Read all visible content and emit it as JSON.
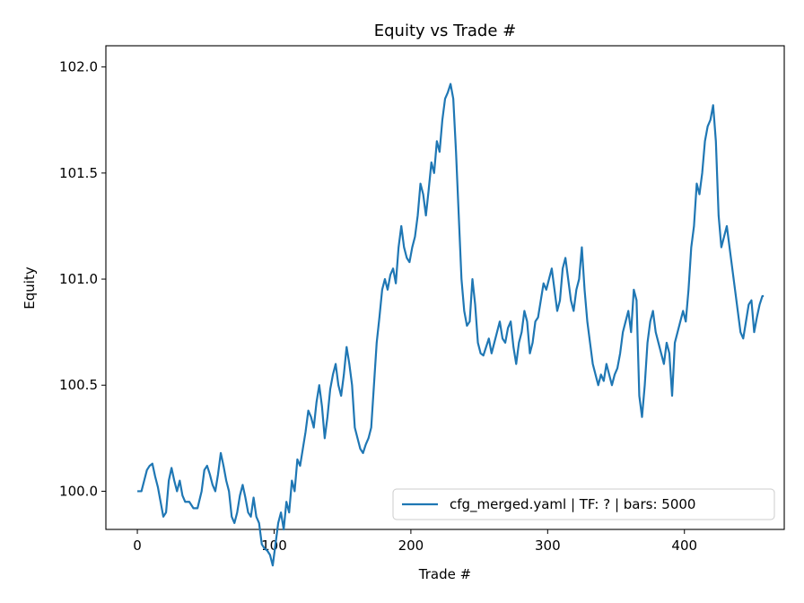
{
  "chart_data": {
    "type": "line",
    "title": "Equity vs Trade #",
    "xlabel": "Trade #",
    "ylabel": "Equity",
    "xlim": [
      -23,
      473
    ],
    "ylim": [
      99.82,
      102.1
    ],
    "xticks": [
      0,
      100,
      200,
      300,
      400
    ],
    "xtick_labels": [
      "0",
      "100",
      "200",
      "300",
      "400"
    ],
    "yticks": [
      100.0,
      100.5,
      101.0,
      101.5,
      102.0
    ],
    "ytick_labels": [
      "100.0",
      "100.5",
      "101.0",
      "101.5",
      "102.0"
    ],
    "grid": false,
    "legend_position": "lower right",
    "series": [
      {
        "name": "cfg_merged.yaml | TF: ? | bars: 5000",
        "color": "#1f77b4",
        "points": [
          [
            0,
            100.0
          ],
          [
            3,
            100.0
          ],
          [
            5,
            100.05
          ],
          [
            7,
            100.1
          ],
          [
            9,
            100.12
          ],
          [
            11,
            100.13
          ],
          [
            13,
            100.07
          ],
          [
            15,
            100.02
          ],
          [
            17,
            99.95
          ],
          [
            19,
            99.88
          ],
          [
            21,
            99.9
          ],
          [
            23,
            100.05
          ],
          [
            25,
            100.11
          ],
          [
            27,
            100.05
          ],
          [
            29,
            100.0
          ],
          [
            31,
            100.05
          ],
          [
            33,
            99.98
          ],
          [
            35,
            99.95
          ],
          [
            38,
            99.95
          ],
          [
            41,
            99.92
          ],
          [
            44,
            99.92
          ],
          [
            47,
            100.0
          ],
          [
            49,
            100.1
          ],
          [
            51,
            100.12
          ],
          [
            53,
            100.08
          ],
          [
            55,
            100.03
          ],
          [
            57,
            100.0
          ],
          [
            59,
            100.08
          ],
          [
            61,
            100.18
          ],
          [
            63,
            100.12
          ],
          [
            65,
            100.05
          ],
          [
            67,
            100.0
          ],
          [
            69,
            99.88
          ],
          [
            71,
            99.85
          ],
          [
            73,
            99.9
          ],
          [
            75,
            99.98
          ],
          [
            77,
            100.03
          ],
          [
            79,
            99.97
          ],
          [
            81,
            99.9
          ],
          [
            83,
            99.88
          ],
          [
            85,
            99.97
          ],
          [
            87,
            99.88
          ],
          [
            89,
            99.85
          ],
          [
            91,
            99.75
          ],
          [
            93,
            99.73
          ],
          [
            95,
            99.72
          ],
          [
            97,
            99.7
          ],
          [
            99,
            99.65
          ],
          [
            101,
            99.75
          ],
          [
            103,
            99.85
          ],
          [
            105,
            99.9
          ],
          [
            107,
            99.82
          ],
          [
            109,
            99.95
          ],
          [
            111,
            99.9
          ],
          [
            113,
            100.05
          ],
          [
            115,
            100.0
          ],
          [
            117,
            100.15
          ],
          [
            119,
            100.12
          ],
          [
            121,
            100.2
          ],
          [
            123,
            100.28
          ],
          [
            125,
            100.38
          ],
          [
            127,
            100.35
          ],
          [
            129,
            100.3
          ],
          [
            131,
            100.42
          ],
          [
            133,
            100.5
          ],
          [
            135,
            100.4
          ],
          [
            137,
            100.25
          ],
          [
            139,
            100.35
          ],
          [
            141,
            100.48
          ],
          [
            143,
            100.55
          ],
          [
            145,
            100.6
          ],
          [
            147,
            100.5
          ],
          [
            149,
            100.45
          ],
          [
            151,
            100.55
          ],
          [
            153,
            100.68
          ],
          [
            155,
            100.6
          ],
          [
            157,
            100.5
          ],
          [
            159,
            100.3
          ],
          [
            161,
            100.25
          ],
          [
            163,
            100.2
          ],
          [
            165,
            100.18
          ],
          [
            167,
            100.22
          ],
          [
            169,
            100.25
          ],
          [
            171,
            100.3
          ],
          [
            173,
            100.5
          ],
          [
            175,
            100.7
          ],
          [
            177,
            100.82
          ],
          [
            179,
            100.95
          ],
          [
            181,
            101.0
          ],
          [
            183,
            100.95
          ],
          [
            185,
            101.02
          ],
          [
            187,
            101.05
          ],
          [
            189,
            100.98
          ],
          [
            191,
            101.15
          ],
          [
            193,
            101.25
          ],
          [
            195,
            101.15
          ],
          [
            197,
            101.1
          ],
          [
            199,
            101.08
          ],
          [
            201,
            101.15
          ],
          [
            203,
            101.2
          ],
          [
            205,
            101.3
          ],
          [
            207,
            101.45
          ],
          [
            209,
            101.4
          ],
          [
            211,
            101.3
          ],
          [
            213,
            101.42
          ],
          [
            215,
            101.55
          ],
          [
            217,
            101.5
          ],
          [
            219,
            101.65
          ],
          [
            221,
            101.6
          ],
          [
            223,
            101.75
          ],
          [
            225,
            101.85
          ],
          [
            227,
            101.88
          ],
          [
            229,
            101.92
          ],
          [
            231,
            101.85
          ],
          [
            233,
            101.6
          ],
          [
            235,
            101.3
          ],
          [
            237,
            101.0
          ],
          [
            239,
            100.85
          ],
          [
            241,
            100.78
          ],
          [
            243,
            100.8
          ],
          [
            245,
            101.0
          ],
          [
            247,
            100.88
          ],
          [
            249,
            100.7
          ],
          [
            251,
            100.65
          ],
          [
            253,
            100.64
          ],
          [
            255,
            100.68
          ],
          [
            257,
            100.72
          ],
          [
            259,
            100.65
          ],
          [
            261,
            100.7
          ],
          [
            263,
            100.75
          ],
          [
            265,
            100.8
          ],
          [
            267,
            100.72
          ],
          [
            269,
            100.7
          ],
          [
            271,
            100.77
          ],
          [
            273,
            100.8
          ],
          [
            275,
            100.68
          ],
          [
            277,
            100.6
          ],
          [
            279,
            100.7
          ],
          [
            281,
            100.75
          ],
          [
            283,
            100.85
          ],
          [
            285,
            100.8
          ],
          [
            287,
            100.65
          ],
          [
            289,
            100.7
          ],
          [
            291,
            100.8
          ],
          [
            293,
            100.82
          ],
          [
            295,
            100.9
          ],
          [
            297,
            100.98
          ],
          [
            299,
            100.95
          ],
          [
            301,
            101.0
          ],
          [
            303,
            101.05
          ],
          [
            305,
            100.95
          ],
          [
            307,
            100.85
          ],
          [
            309,
            100.9
          ],
          [
            311,
            101.05
          ],
          [
            313,
            101.1
          ],
          [
            315,
            101.0
          ],
          [
            317,
            100.9
          ],
          [
            319,
            100.85
          ],
          [
            321,
            100.95
          ],
          [
            323,
            101.0
          ],
          [
            325,
            101.15
          ],
          [
            327,
            100.95
          ],
          [
            329,
            100.8
          ],
          [
            331,
            100.7
          ],
          [
            333,
            100.6
          ],
          [
            335,
            100.55
          ],
          [
            337,
            100.5
          ],
          [
            339,
            100.55
          ],
          [
            341,
            100.52
          ],
          [
            343,
            100.6
          ],
          [
            345,
            100.55
          ],
          [
            347,
            100.5
          ],
          [
            349,
            100.55
          ],
          [
            351,
            100.58
          ],
          [
            353,
            100.65
          ],
          [
            355,
            100.75
          ],
          [
            357,
            100.8
          ],
          [
            359,
            100.85
          ],
          [
            361,
            100.75
          ],
          [
            363,
            100.95
          ],
          [
            365,
            100.9
          ],
          [
            367,
            100.45
          ],
          [
            369,
            100.35
          ],
          [
            371,
            100.5
          ],
          [
            373,
            100.7
          ],
          [
            375,
            100.8
          ],
          [
            377,
            100.85
          ],
          [
            379,
            100.75
          ],
          [
            381,
            100.7
          ],
          [
            383,
            100.65
          ],
          [
            385,
            100.6
          ],
          [
            387,
            100.7
          ],
          [
            389,
            100.65
          ],
          [
            391,
            100.45
          ],
          [
            393,
            100.7
          ],
          [
            395,
            100.75
          ],
          [
            397,
            100.8
          ],
          [
            399,
            100.85
          ],
          [
            401,
            100.8
          ],
          [
            403,
            100.95
          ],
          [
            405,
            101.15
          ],
          [
            407,
            101.25
          ],
          [
            409,
            101.45
          ],
          [
            411,
            101.4
          ],
          [
            413,
            101.5
          ],
          [
            415,
            101.65
          ],
          [
            417,
            101.72
          ],
          [
            419,
            101.75
          ],
          [
            421,
            101.82
          ],
          [
            423,
            101.65
          ],
          [
            425,
            101.3
          ],
          [
            427,
            101.15
          ],
          [
            429,
            101.2
          ],
          [
            431,
            101.25
          ],
          [
            433,
            101.15
          ],
          [
            435,
            101.05
          ],
          [
            437,
            100.95
          ],
          [
            439,
            100.85
          ],
          [
            441,
            100.75
          ],
          [
            443,
            100.72
          ],
          [
            445,
            100.8
          ],
          [
            447,
            100.88
          ],
          [
            449,
            100.9
          ],
          [
            451,
            100.75
          ],
          [
            453,
            100.82
          ],
          [
            455,
            100.88
          ],
          [
            457,
            100.92
          ],
          [
            458,
            100.92
          ]
        ]
      }
    ]
  }
}
